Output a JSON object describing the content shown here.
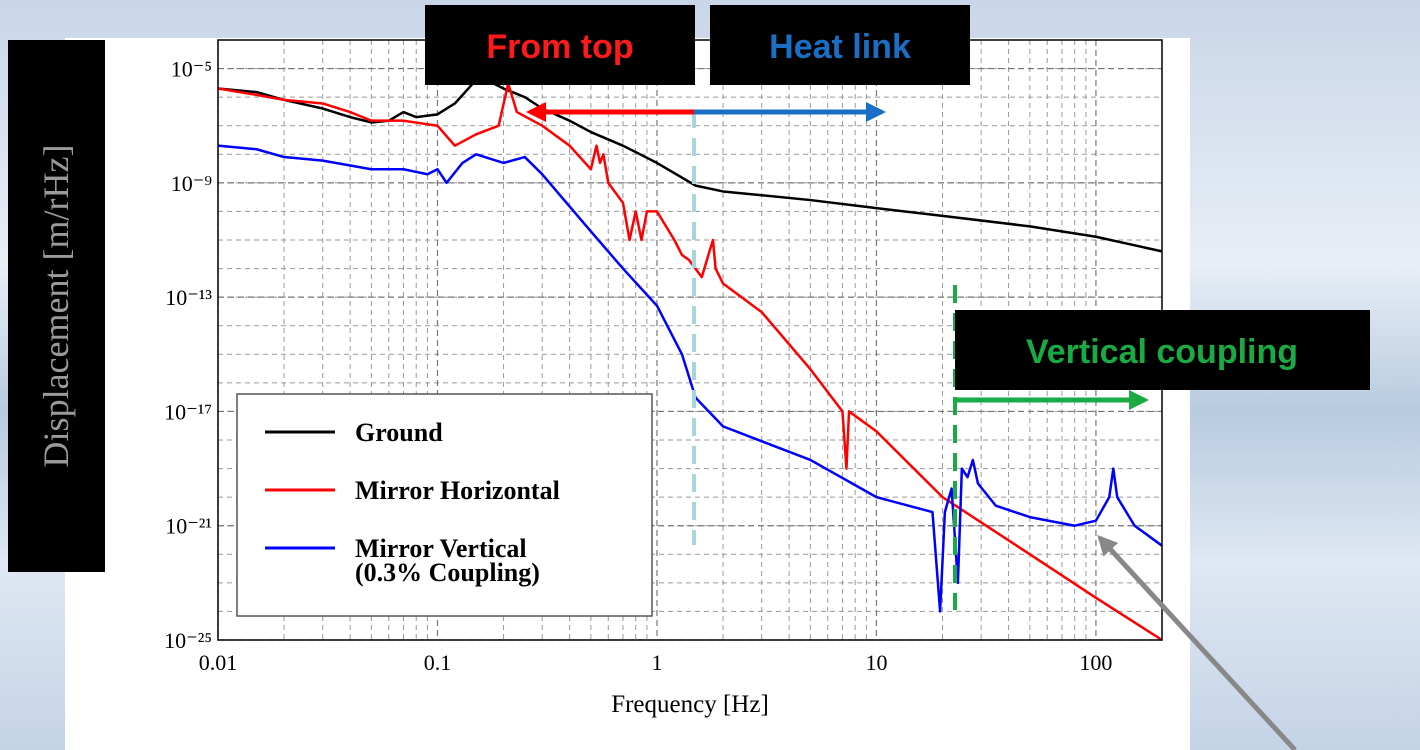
{
  "chart_data": {
    "type": "line",
    "xlabel": "Frequency [Hz]",
    "ylabel": "Displacement [m/rHz]",
    "annotations": [
      "From top",
      "Heat link",
      "Vertical coupling"
    ],
    "xscale": "log",
    "yscale": "log",
    "grid": true,
    "legend": "lower left",
    "xlim": [
      0.01,
      200
    ],
    "ylim": [
      1e-25,
      0.0001
    ],
    "xticks": [
      0.01,
      0.1,
      1,
      10,
      100
    ],
    "yticks": [
      {
        "value": 1e-05,
        "label": "10⁻⁵"
      },
      {
        "value": 1e-09,
        "label": "10⁻⁹"
      },
      {
        "value": 1e-13,
        "label": "10⁻¹³"
      },
      {
        "value": 1e-17,
        "label": "10⁻¹⁷"
      },
      {
        "value": 1e-21,
        "label": "10⁻²¹"
      },
      {
        "value": 1e-25,
        "label": "10⁻²⁵"
      }
    ],
    "series": [
      {
        "name": "Ground",
        "color": "#000000",
        "x": [
          0.01,
          0.015,
          0.02,
          0.03,
          0.04,
          0.05,
          0.06,
          0.07,
          0.08,
          0.1,
          0.12,
          0.15,
          0.18,
          0.2,
          0.25,
          0.3,
          0.4,
          0.5,
          0.7,
          1,
          1.5,
          2,
          5,
          10,
          20,
          50,
          100,
          200
        ],
        "values": [
          2e-06,
          1.5e-06,
          8e-07,
          4e-07,
          2e-07,
          1.3e-07,
          1.5e-07,
          3e-07,
          2e-07,
          2.5e-07,
          6e-07,
          4e-06,
          3e-06,
          2e-06,
          1e-06,
          4e-07,
          1.5e-07,
          6e-08,
          2e-08,
          5e-09,
          8e-10,
          5e-10,
          2.5e-10,
          1.3e-10,
          7e-11,
          3e-11,
          1.3e-11,
          4e-12
        ]
      },
      {
        "name": "Mirror Horizontal",
        "color": "#ff0000",
        "x": [
          0.01,
          0.015,
          0.02,
          0.03,
          0.04,
          0.05,
          0.07,
          0.1,
          0.12,
          0.15,
          0.19,
          0.21,
          0.23,
          0.3,
          0.4,
          0.5,
          0.53,
          0.55,
          0.57,
          0.6,
          0.7,
          0.75,
          0.8,
          0.85,
          0.9,
          1,
          1.1,
          1.2,
          1.3,
          1.4,
          1.6,
          1.75,
          1.8,
          1.85,
          2,
          3,
          5,
          7,
          7.3,
          7.5,
          10,
          20,
          50,
          100,
          200
        ],
        "values": [
          2e-06,
          1.2e-06,
          8e-07,
          6e-07,
          3e-07,
          1.5e-07,
          1.5e-07,
          1e-07,
          2e-08,
          5e-08,
          1e-07,
          3e-06,
          3e-07,
          1e-07,
          2e-08,
          3e-09,
          2e-08,
          5e-09,
          1e-08,
          1e-09,
          2e-10,
          1e-11,
          1e-10,
          1e-11,
          1e-10,
          1e-10,
          3e-11,
          1e-11,
          3e-12,
          2e-12,
          5e-13,
          5e-12,
          1e-11,
          1e-12,
          3e-13,
          3e-14,
          3e-16,
          1e-17,
          1e-19,
          1e-17,
          2e-18,
          1e-20,
          1e-22,
          3e-24,
          1e-25
        ]
      },
      {
        "name": "Mirror Vertical\n(0.3% Coupling)",
        "color": "#0000ff",
        "x": [
          0.01,
          0.015,
          0.02,
          0.03,
          0.05,
          0.07,
          0.09,
          0.1,
          0.11,
          0.13,
          0.15,
          0.2,
          0.25,
          0.3,
          0.5,
          0.7,
          1,
          1.3,
          1.5,
          2,
          5,
          10,
          18,
          19.5,
          20.5,
          22,
          23.5,
          24.5,
          26,
          27.5,
          29,
          35,
          50,
          80,
          100,
          115,
          120,
          125,
          150,
          200
        ],
        "values": [
          2e-08,
          1.5e-08,
          8e-09,
          6e-09,
          3e-09,
          3e-09,
          2e-09,
          3e-09,
          1e-09,
          5e-09,
          1e-08,
          5e-09,
          8e-09,
          2e-09,
          2e-11,
          1e-12,
          5e-14,
          1e-15,
          3e-17,
          3e-18,
          2e-19,
          1e-20,
          3e-21,
          1e-24,
          3e-21,
          2e-20,
          1e-23,
          1e-19,
          5e-20,
          2e-19,
          3e-20,
          5e-21,
          2e-21,
          1e-21,
          1.5e-21,
          1e-20,
          1e-19,
          1e-20,
          1e-21,
          2e-22
        ]
      }
    ]
  }
}
